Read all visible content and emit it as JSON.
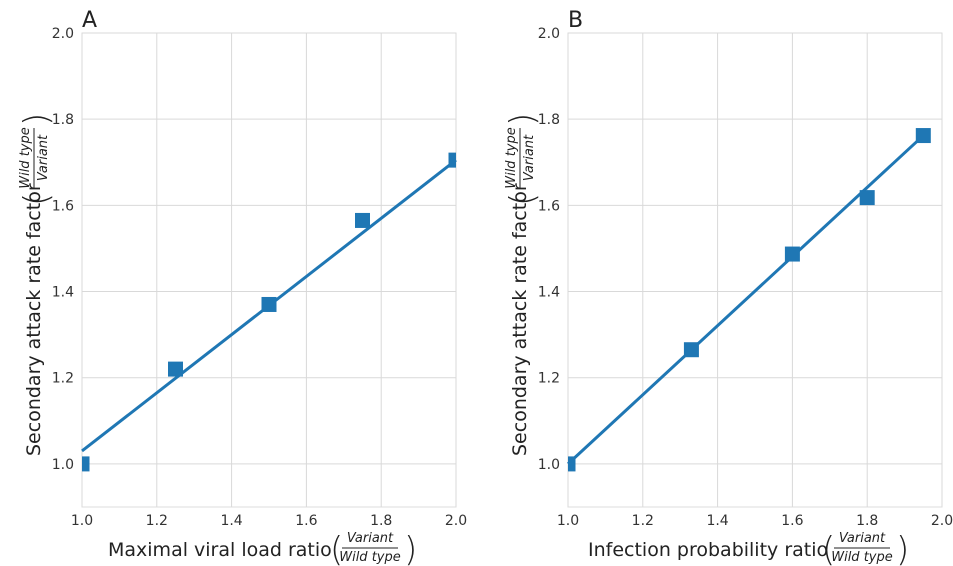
{
  "colors": {
    "series": "#1f77b4",
    "grid": "#d9d9d9",
    "text": "#222222"
  },
  "chart_data": [
    {
      "panel_label": "A",
      "type": "line",
      "marker": "square",
      "x": [
        1.0,
        1.25,
        1.5,
        1.75,
        2.0
      ],
      "points": [
        1.0,
        1.22,
        1.37,
        1.565,
        1.705
      ],
      "fit_line": {
        "x": [
          1.0,
          2.0
        ],
        "y": [
          1.03,
          1.705
        ]
      },
      "xlim": [
        1.0,
        2.0
      ],
      "ylim": [
        0.9,
        2.0
      ],
      "xticks": [
        "1.0",
        "1.2",
        "1.4",
        "1.6",
        "1.8",
        "2.0"
      ],
      "yticks": [
        "1.0",
        "1.2",
        "1.4",
        "1.6",
        "1.8",
        "2.0"
      ],
      "xlabel": {
        "text": "Maximal viral load ratio",
        "numerator": "Variant",
        "denominator": "Wild  type"
      },
      "ylabel": {
        "text": "Secondary attack rate factor",
        "numerator": "Wild  type",
        "denominator": "Variant"
      },
      "grid": true
    },
    {
      "panel_label": "B",
      "type": "line",
      "marker": "square",
      "x": [
        1.0,
        1.33,
        1.6,
        1.8,
        1.95
      ],
      "points": [
        1.0,
        1.265,
        1.487,
        1.618,
        1.762
      ],
      "fit_line": {
        "x": [
          1.0,
          1.95
        ],
        "y": [
          1.0,
          1.762
        ]
      },
      "xlim": [
        1.0,
        2.0
      ],
      "ylim": [
        0.9,
        2.0
      ],
      "xticks": [
        "1.0",
        "1.2",
        "1.4",
        "1.6",
        "1.8",
        "2.0"
      ],
      "yticks": [
        "1.0",
        "1.2",
        "1.4",
        "1.6",
        "1.8",
        "2.0"
      ],
      "xlabel": {
        "text": "Infection probability ratio",
        "numerator": "Variant",
        "denominator": "Wild  type"
      },
      "ylabel": {
        "text": "Secondary attack rate factor",
        "numerator": "Wild  type",
        "denominator": "Variant"
      },
      "grid": true
    }
  ]
}
